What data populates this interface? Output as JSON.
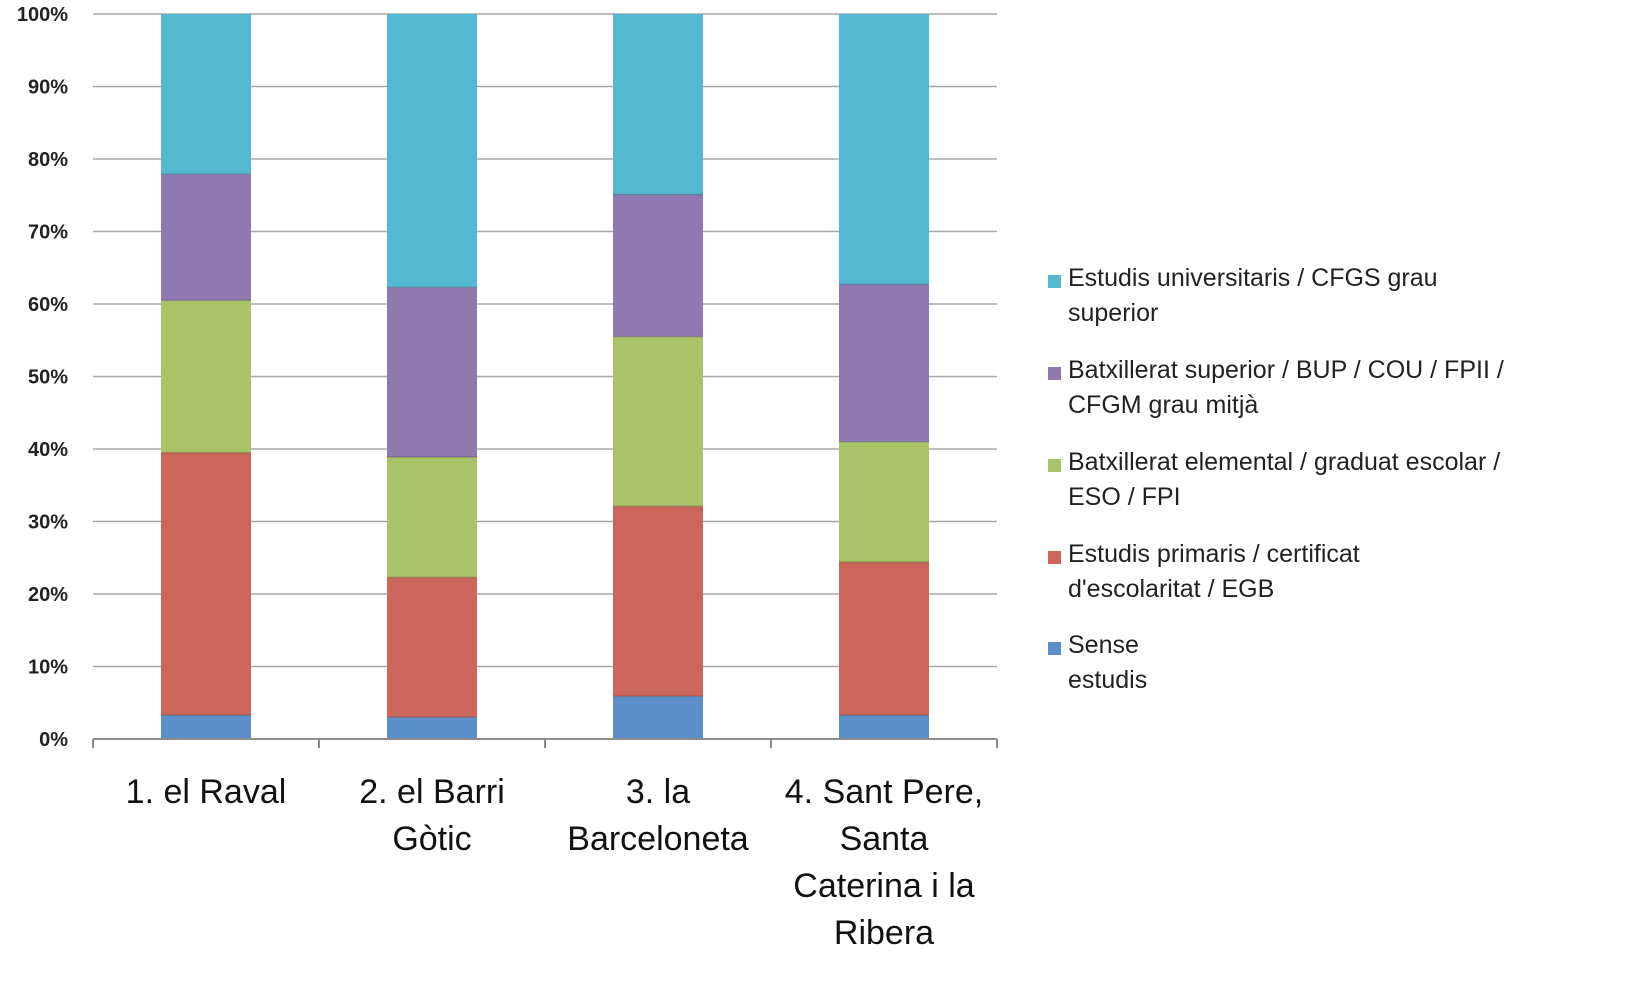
{
  "chart_data": {
    "type": "bar",
    "stacked": true,
    "y_format": "percent",
    "ylim": [
      0,
      100
    ],
    "yticks": [
      "0%",
      "10%",
      "20%",
      "30%",
      "40%",
      "50%",
      "60%",
      "70%",
      "80%",
      "90%",
      "100%"
    ],
    "grid": true,
    "legend_position": "right",
    "categories": [
      [
        "1. el Raval"
      ],
      [
        "2. el Barri",
        "Gòtic"
      ],
      [
        "3. la",
        "Barceloneta"
      ],
      [
        "4. Sant Pere,",
        "Santa",
        "Caterina i la",
        "Ribera"
      ]
    ],
    "series": [
      {
        "name": [
          "Sense",
          "estudis"
        ],
        "color": "#5B8FC9",
        "values": [
          3.3,
          3.0,
          5.9,
          3.3
        ]
      },
      {
        "name": [
          "Estudis primaris / certificat",
          "d'escolaritat / EGB"
        ],
        "color": "#CD665A",
        "values": [
          36.2,
          19.3,
          26.2,
          21.1
        ]
      },
      {
        "name": [
          "Batxillerat elemental / graduat escolar /",
          "ESO / FPI"
        ],
        "color": "#A9C369",
        "values": [
          21.0,
          16.6,
          23.4,
          16.6
        ]
      },
      {
        "name": [
          "Batxillerat superior / BUP / COU / FPII /",
          "CFGM grau mitjà"
        ],
        "color": "#8F79B0",
        "values": [
          17.4,
          23.4,
          19.6,
          21.7
        ]
      },
      {
        "name": [
          "Estudis universitaris / CFGS grau",
          "superior"
        ],
        "color": "#54B8D0",
        "values": [
          22.1,
          37.7,
          24.9,
          37.3
        ]
      }
    ]
  }
}
